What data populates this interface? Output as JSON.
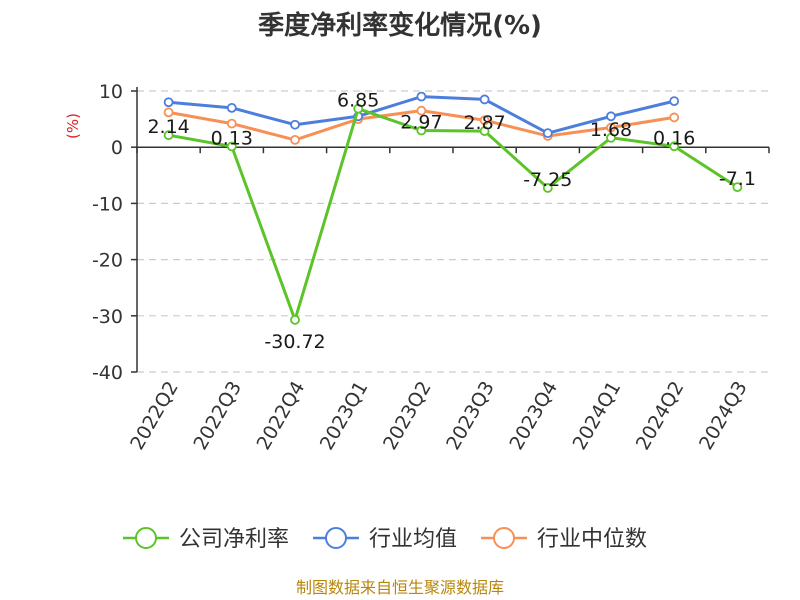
{
  "colors": {
    "company": "#5cc328",
    "industry_avg": "#4c7fdc",
    "industry_median": "#f79057",
    "source": "#b8860b",
    "ylabel": "#e02020"
  },
  "chart_data": {
    "type": "line",
    "title": "季度净利率变化情况(%)",
    "ylabel": "(%)",
    "ylim": [
      -40,
      10
    ],
    "yticks": [
      10,
      0,
      -10,
      -20,
      -30,
      -40
    ],
    "grid": true,
    "legend_position": "bottom",
    "categories": [
      "2022Q2",
      "2022Q3",
      "2022Q4",
      "2023Q1",
      "2023Q2",
      "2023Q3",
      "2023Q4",
      "2024Q1",
      "2024Q2",
      "2024Q3"
    ],
    "series": [
      {
        "name": "公司净利率",
        "key": "company",
        "values": [
          2.14,
          0.13,
          -30.72,
          6.85,
          2.97,
          2.87,
          -7.25,
          1.68,
          0.16,
          -7.1
        ],
        "labels": [
          "2.14",
          "0.13",
          "-30.72",
          "6.85",
          "2.97",
          "2.87",
          "-7.25",
          "1.68",
          "0.16",
          "-7.1"
        ]
      },
      {
        "name": "行业均值",
        "key": "industry_avg",
        "values": [
          8.0,
          7.0,
          4.0,
          5.5,
          9.0,
          8.5,
          2.5,
          5.5,
          8.2,
          null
        ]
      },
      {
        "name": "行业中位数",
        "key": "industry_median",
        "values": [
          6.2,
          4.2,
          1.3,
          5.0,
          6.5,
          4.8,
          2.0,
          3.5,
          5.3,
          null
        ]
      }
    ]
  },
  "source_text": "制图数据来自恒生聚源数据库"
}
